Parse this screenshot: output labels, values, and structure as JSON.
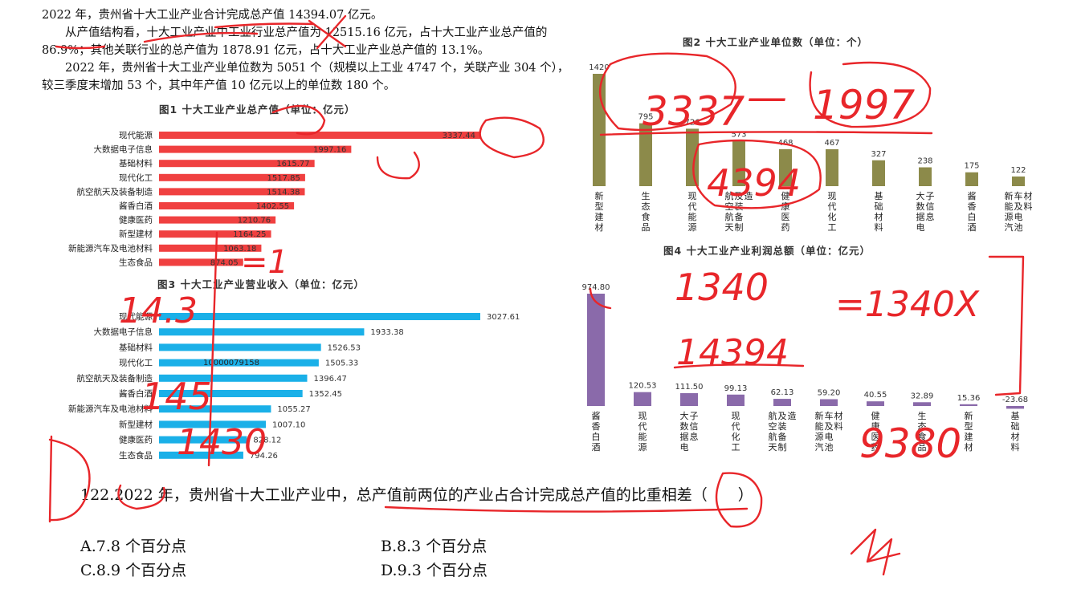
{
  "passage": {
    "p1": "2022 年，贵州省十大工业产业合计完成总产值 14394.07 亿元。",
    "p2": "从产值结构看，十大工业产业中工业行业总产值为 12515.16 亿元，占十大工业产业总产值的 86.9%；其他关联行业的总产值为 1878.91 亿元，占十大工业产业总产值的 13.1%。",
    "p3": "2022 年，贵州省十大工业产业单位数为 5051 个（规模以上工业 4747 个，关联产业 304 个），较三季度末增加 53 个，其中年产值 10 亿元以上的单位数 180 个。"
  },
  "popup_text": "10000079158",
  "chart_data": [
    {
      "id": "fig1",
      "type": "bar",
      "orientation": "horizontal",
      "title": "图1  十大工业产业总产值（单位：亿元）",
      "color": "#f04040",
      "categories": [
        "现代能源",
        "大数据电子信息",
        "基础材料",
        "现代化工",
        "航空航天及装备制造",
        "酱香白酒",
        "健康医药",
        "新型建材",
        "新能源汽车及电池材料",
        "生态食品"
      ],
      "values": [
        3337.44,
        1997.16,
        1615.77,
        1517.85,
        1514.38,
        1402.55,
        1210.76,
        1164.25,
        1063.18,
        874.05
      ],
      "labels": [
        "3337.44",
        "1997.16",
        "1615.77",
        "1517.85",
        "1514.38",
        "1402.55",
        "1210.76",
        "1164.25",
        "1063.18",
        "874.05"
      ]
    },
    {
      "id": "fig2",
      "type": "bar",
      "orientation": "vertical",
      "title": "图2  十大工业产业单位数（单位：个）",
      "color": "#8c8a4a",
      "categories": [
        "新型建材",
        "生态食品",
        "现代能源",
        "航空航天及装备制造",
        "健康医药",
        "现代化工",
        "基础材料",
        "大数据电子信息",
        "酱香白酒",
        "新能源汽车及电池材料"
      ],
      "values": [
        1420,
        795,
        726,
        573,
        468,
        467,
        327,
        238,
        175,
        122
      ],
      "labels": [
        "1420",
        "795",
        "726",
        "573",
        "468",
        "467",
        "327",
        "238",
        "175",
        "122"
      ]
    },
    {
      "id": "fig3",
      "type": "bar",
      "orientation": "horizontal",
      "title": "图3  十大工业产业营业收入（单位：亿元）",
      "color": "#1ab0e8",
      "categories": [
        "现代能源",
        "大数据电子信息",
        "基础材料",
        "现代化工",
        "航空航天及装备制造",
        "酱香白酒",
        "新能源汽车及电池材料",
        "新型建材",
        "健康医药",
        "生态食品"
      ],
      "values": [
        3027.61,
        1933.38,
        1526.53,
        1505.33,
        1396.47,
        1352.45,
        1055.27,
        1007.1,
        828.12,
        794.26
      ],
      "labels": [
        "3027.61",
        "1933.38",
        "1526.53",
        "1505.33",
        "1396.47",
        "1352.45",
        "1055.27",
        "1007.10",
        "828.12",
        "794.26"
      ]
    },
    {
      "id": "fig4",
      "type": "bar",
      "orientation": "vertical",
      "title": "图4  十大工业产业利润总额（单位：亿元）",
      "color": "#8a6aaa",
      "categories": [
        "酱香白酒",
        "现代能源",
        "大数据电子信息",
        "现代化工",
        "航空航天及装备制造",
        "新能源汽车及电池材料",
        "健康医药",
        "生态食品",
        "新型建材",
        "基础材料"
      ],
      "values": [
        974.8,
        120.53,
        111.5,
        99.13,
        62.13,
        59.2,
        40.55,
        32.89,
        15.36,
        -23.68
      ],
      "labels": [
        "974.80",
        "120.53",
        "111.50",
        "99.13",
        "62.13",
        "59.20",
        "40.55",
        "32.89",
        "15.36",
        "-23.68"
      ]
    }
  ],
  "question": {
    "stem": "122.2022 年，贵州省十大工业产业中，总产值前两位的产业占合计完成总产值的比重相差（　　）",
    "options": [
      "A.7.8 个百分点",
      "B.8.3 个百分点",
      "C.8.9 个百分点",
      "D.9.3 个百分点"
    ]
  },
  "annotations": {
    "ink_color": "#e8262a",
    "marks": [
      "3337",
      "—",
      "1997",
      "4394",
      "1340",
      "14394",
      "=1340X",
      "=1",
      "14.3",
      "145",
      "1430",
      "D",
      "9380"
    ]
  }
}
